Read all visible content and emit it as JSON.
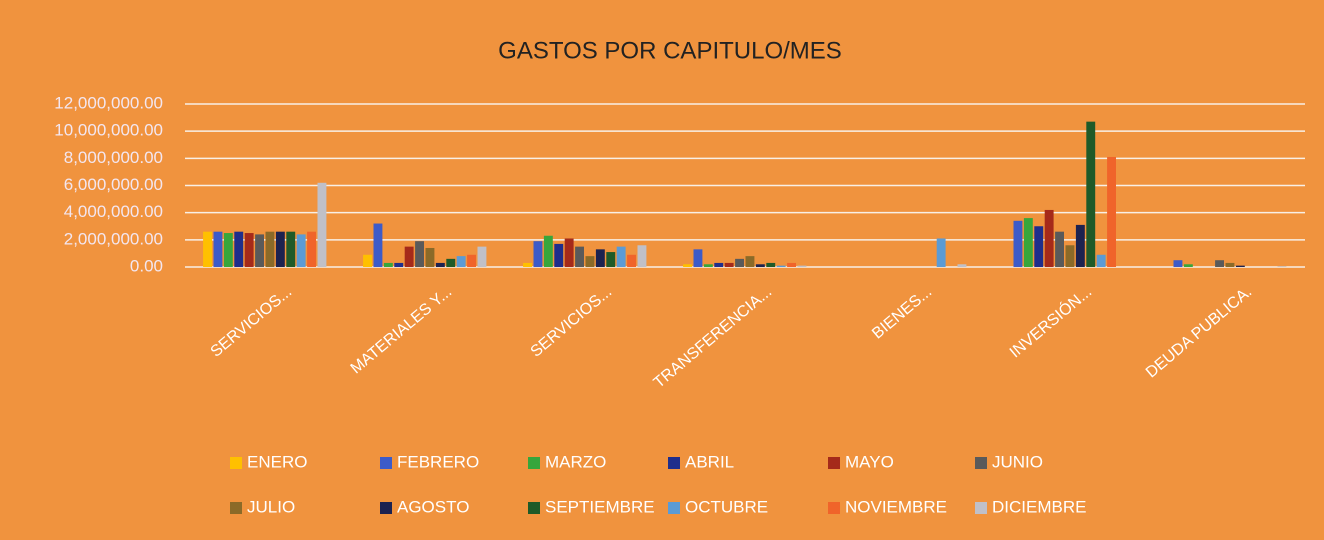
{
  "chart_data": {
    "type": "bar",
    "title": "GASTOS POR CAPITULO/MES",
    "categories": [
      "SERVICIOS...",
      "MATERIALES Y...",
      "SERVICIOS...",
      "TRANSFERENCIA...",
      "BIENES...",
      "INVERSIÓN...",
      "DEUDA PUBLICA."
    ],
    "series": [
      {
        "name": "ENERO",
        "color": "#ffc000",
        "values": [
          2600000,
          900000,
          300000,
          200000,
          0,
          0,
          0
        ]
      },
      {
        "name": "FEBRERO",
        "color": "#3d5bc8",
        "values": [
          2600000,
          3200000,
          1900000,
          1300000,
          0,
          3400000,
          500000
        ]
      },
      {
        "name": "MARZO",
        "color": "#37a63c",
        "values": [
          2500000,
          300000,
          2300000,
          200000,
          0,
          3600000,
          200000
        ]
      },
      {
        "name": "ABRIL",
        "color": "#1f2e8c",
        "values": [
          2600000,
          300000,
          1700000,
          300000,
          0,
          3000000,
          0
        ]
      },
      {
        "name": "MAYO",
        "color": "#a52a1a",
        "values": [
          2500000,
          1500000,
          2100000,
          300000,
          0,
          4200000,
          0
        ]
      },
      {
        "name": "JUNIO",
        "color": "#5a5a5a",
        "values": [
          2400000,
          1900000,
          1500000,
          600000,
          0,
          2600000,
          500000
        ]
      },
      {
        "name": "JULIO",
        "color": "#8b6a28",
        "values": [
          2600000,
          1400000,
          800000,
          800000,
          0,
          1600000,
          300000
        ]
      },
      {
        "name": "AGOSTO",
        "color": "#1c2250",
        "values": [
          2600000,
          300000,
          1300000,
          200000,
          0,
          3100000,
          100000
        ]
      },
      {
        "name": "SEPTIEMBRE",
        "color": "#1f5a28",
        "values": [
          2600000,
          600000,
          1100000,
          300000,
          0,
          10700000,
          0
        ]
      },
      {
        "name": "OCTUBRE",
        "color": "#5b9bd5",
        "values": [
          2400000,
          800000,
          1500000,
          100000,
          2100000,
          900000,
          0
        ]
      },
      {
        "name": "NOVIEMBRE",
        "color": "#f0642a",
        "values": [
          2600000,
          900000,
          900000,
          300000,
          0,
          8100000,
          0
        ]
      },
      {
        "name": "DICIEMBRE",
        "color": "#c0c0c8",
        "values": [
          6200000,
          1500000,
          1600000,
          100000,
          200000,
          0,
          50000
        ]
      }
    ],
    "ylim": [
      0,
      12000000
    ],
    "yticks": [
      {
        "value": 0,
        "label": "0.00"
      },
      {
        "value": 2000000,
        "label": "2,000,000.00"
      },
      {
        "value": 4000000,
        "label": "4,000,000.00"
      },
      {
        "value": 6000000,
        "label": "6,000,000.00"
      },
      {
        "value": 8000000,
        "label": "8,000,000.00"
      },
      {
        "value": 10000000,
        "label": "10,000,000.00"
      },
      {
        "value": 12000000,
        "label": "12,000,000.00"
      }
    ],
    "grid": true
  }
}
